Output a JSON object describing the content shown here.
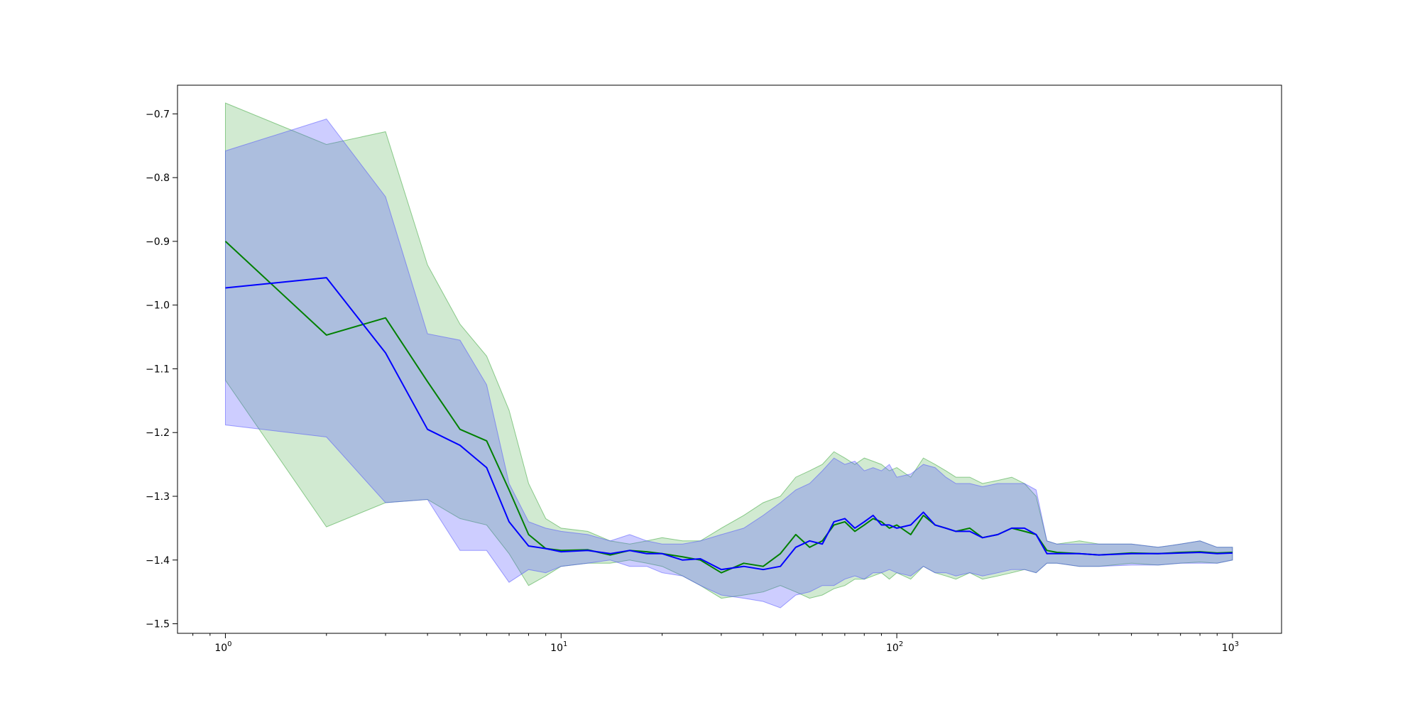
{
  "chart_data": {
    "type": "line",
    "title": "",
    "xlabel": "",
    "ylabel": "",
    "x_scale": "log",
    "xlim": [
      0.72,
      1400
    ],
    "ylim": [
      -1.515,
      -0.655
    ],
    "grid": false,
    "legend": "none",
    "x_ticks": [
      {
        "value": 1,
        "base": "10",
        "exp": "0"
      },
      {
        "value": 10,
        "base": "10",
        "exp": "1"
      },
      {
        "value": 100,
        "base": "10",
        "exp": "2"
      },
      {
        "value": 1000,
        "base": "10",
        "exp": "3"
      }
    ],
    "y_ticks": [
      {
        "value": -0.7,
        "label": "−0.7"
      },
      {
        "value": -0.8,
        "label": "−0.8"
      },
      {
        "value": -0.9,
        "label": "−0.9"
      },
      {
        "value": -1.0,
        "label": "−1.0"
      },
      {
        "value": -1.1,
        "label": "−1.1"
      },
      {
        "value": -1.2,
        "label": "−1.2"
      },
      {
        "value": -1.3,
        "label": "−1.3"
      },
      {
        "value": -1.4,
        "label": "−1.4"
      },
      {
        "value": -1.5,
        "label": "−1.5"
      }
    ],
    "series": [
      {
        "color": "#008000",
        "band_color": "#2ca02c",
        "band_opacity": 0.22,
        "x": [
          1,
          2,
          3,
          4,
          5,
          6,
          7,
          8,
          9,
          10,
          12,
          14,
          16,
          18,
          20,
          23,
          26,
          30,
          35,
          40,
          45,
          50,
          55,
          60,
          65,
          70,
          75,
          80,
          85,
          90,
          95,
          100,
          110,
          120,
          130,
          140,
          150,
          165,
          180,
          200,
          220,
          240,
          260,
          280,
          300,
          350,
          400,
          500,
          600,
          700,
          800,
          900,
          1000
        ],
        "y": [
          -0.9,
          -1.047,
          -1.02,
          -1.12,
          -1.195,
          -1.213,
          -1.29,
          -1.36,
          -1.382,
          -1.385,
          -1.384,
          -1.392,
          -1.385,
          -1.387,
          -1.39,
          -1.395,
          -1.4,
          -1.42,
          -1.405,
          -1.41,
          -1.39,
          -1.36,
          -1.38,
          -1.37,
          -1.345,
          -1.34,
          -1.355,
          -1.345,
          -1.335,
          -1.34,
          -1.35,
          -1.345,
          -1.36,
          -1.33,
          -1.345,
          -1.35,
          -1.355,
          -1.35,
          -1.365,
          -1.36,
          -1.35,
          -1.355,
          -1.36,
          -1.385,
          -1.388,
          -1.39,
          -1.392,
          -1.389,
          -1.39,
          -1.388,
          -1.387,
          -1.389,
          -1.388
        ],
        "upper": [
          -0.683,
          -0.748,
          -0.728,
          -0.937,
          -1.03,
          -1.08,
          -1.165,
          -1.28,
          -1.335,
          -1.35,
          -1.355,
          -1.37,
          -1.375,
          -1.37,
          -1.365,
          -1.37,
          -1.37,
          -1.35,
          -1.33,
          -1.31,
          -1.3,
          -1.27,
          -1.26,
          -1.25,
          -1.23,
          -1.24,
          -1.25,
          -1.24,
          -1.245,
          -1.25,
          -1.26,
          -1.255,
          -1.27,
          -1.24,
          -1.25,
          -1.26,
          -1.27,
          -1.27,
          -1.28,
          -1.275,
          -1.27,
          -1.28,
          -1.3,
          -1.37,
          -1.375,
          -1.37,
          -1.375,
          -1.375,
          -1.38,
          -1.375,
          -1.37,
          -1.38,
          -1.38
        ],
        "lower": [
          -1.118,
          -1.348,
          -1.31,
          -1.305,
          -1.335,
          -1.345,
          -1.39,
          -1.44,
          -1.425,
          -1.41,
          -1.405,
          -1.405,
          -1.4,
          -1.405,
          -1.41,
          -1.425,
          -1.44,
          -1.46,
          -1.455,
          -1.45,
          -1.44,
          -1.45,
          -1.46,
          -1.455,
          -1.445,
          -1.44,
          -1.43,
          -1.43,
          -1.425,
          -1.42,
          -1.43,
          -1.42,
          -1.43,
          -1.41,
          -1.42,
          -1.425,
          -1.43,
          -1.42,
          -1.43,
          -1.425,
          -1.42,
          -1.415,
          -1.42,
          -1.405,
          -1.405,
          -1.41,
          -1.41,
          -1.405,
          -1.408,
          -1.405,
          -1.403,
          -1.405,
          -1.4
        ]
      },
      {
        "color": "#0000ff",
        "band_color": "#4b4bff",
        "band_opacity": 0.28,
        "x": [
          1,
          2,
          3,
          4,
          5,
          6,
          7,
          8,
          9,
          10,
          12,
          14,
          16,
          18,
          20,
          23,
          26,
          30,
          35,
          40,
          45,
          50,
          55,
          60,
          65,
          70,
          75,
          80,
          85,
          90,
          95,
          100,
          110,
          120,
          130,
          140,
          150,
          165,
          180,
          200,
          220,
          240,
          260,
          280,
          300,
          350,
          400,
          500,
          600,
          700,
          800,
          900,
          1000
        ],
        "y": [
          -0.973,
          -0.957,
          -1.075,
          -1.195,
          -1.22,
          -1.255,
          -1.34,
          -1.378,
          -1.382,
          -1.387,
          -1.385,
          -1.39,
          -1.385,
          -1.39,
          -1.39,
          -1.4,
          -1.398,
          -1.415,
          -1.41,
          -1.415,
          -1.41,
          -1.38,
          -1.37,
          -1.375,
          -1.34,
          -1.335,
          -1.35,
          -1.34,
          -1.33,
          -1.345,
          -1.345,
          -1.35,
          -1.345,
          -1.325,
          -1.345,
          -1.35,
          -1.355,
          -1.355,
          -1.365,
          -1.36,
          -1.35,
          -1.35,
          -1.36,
          -1.39,
          -1.39,
          -1.39,
          -1.392,
          -1.39,
          -1.39,
          -1.389,
          -1.388,
          -1.39,
          -1.389
        ],
        "upper": [
          -0.758,
          -0.708,
          -0.83,
          -1.045,
          -1.055,
          -1.125,
          -1.28,
          -1.34,
          -1.35,
          -1.355,
          -1.36,
          -1.37,
          -1.36,
          -1.37,
          -1.375,
          -1.375,
          -1.37,
          -1.36,
          -1.35,
          -1.33,
          -1.31,
          -1.29,
          -1.28,
          -1.26,
          -1.24,
          -1.25,
          -1.245,
          -1.26,
          -1.255,
          -1.26,
          -1.25,
          -1.27,
          -1.265,
          -1.25,
          -1.255,
          -1.27,
          -1.28,
          -1.28,
          -1.285,
          -1.28,
          -1.28,
          -1.28,
          -1.29,
          -1.37,
          -1.375,
          -1.375,
          -1.375,
          -1.375,
          -1.38,
          -1.375,
          -1.37,
          -1.38,
          -1.38
        ],
        "lower": [
          -1.188,
          -1.207,
          -1.31,
          -1.305,
          -1.385,
          -1.385,
          -1.435,
          -1.415,
          -1.42,
          -1.41,
          -1.405,
          -1.4,
          -1.41,
          -1.41,
          -1.42,
          -1.425,
          -1.44,
          -1.455,
          -1.46,
          -1.465,
          -1.475,
          -1.455,
          -1.45,
          -1.44,
          -1.44,
          -1.43,
          -1.425,
          -1.43,
          -1.42,
          -1.42,
          -1.415,
          -1.42,
          -1.425,
          -1.41,
          -1.42,
          -1.42,
          -1.425,
          -1.42,
          -1.425,
          -1.42,
          -1.415,
          -1.415,
          -1.42,
          -1.405,
          -1.405,
          -1.41,
          -1.41,
          -1.408,
          -1.408,
          -1.405,
          -1.405,
          -1.405,
          -1.4
        ]
      }
    ]
  }
}
